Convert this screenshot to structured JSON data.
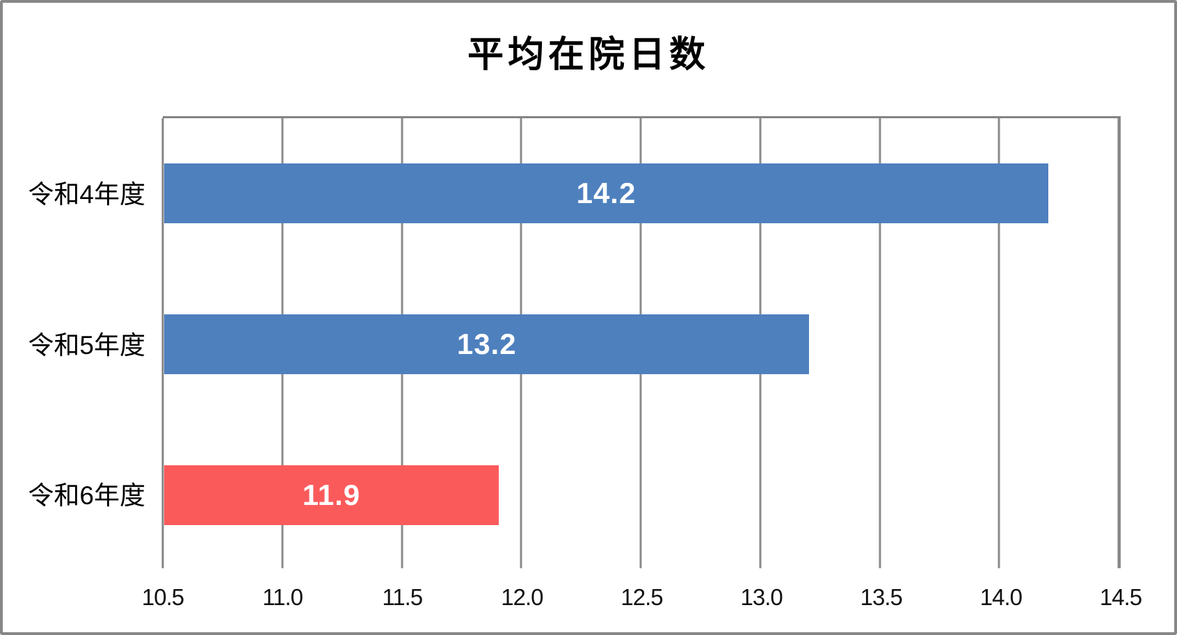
{
  "colors": {
    "bar_blue": "#4e80be",
    "bar_red": "#fb5a5b",
    "gridline": "#8b8b8b",
    "plot_border": "#848484",
    "frame_border": "#878787",
    "value_label_text": "#ffffff",
    "text": "#000000"
  },
  "chart_data": {
    "type": "bar",
    "orientation": "horizontal",
    "title": "平均在院日数",
    "categories": [
      "令和4年度",
      "令和5年度",
      "令和6年度"
    ],
    "values": [
      14.2,
      13.2,
      11.9
    ],
    "value_labels": [
      "14.2",
      "13.2",
      "11.9"
    ],
    "bar_colors": [
      "#4e80be",
      "#4e80be",
      "#fb5a5b"
    ],
    "xlim": [
      10.5,
      14.5
    ],
    "x_ticks": [
      "10.5",
      "11.0",
      "11.5",
      "12.0",
      "12.5",
      "13.0",
      "13.5",
      "14.0",
      "14.5"
    ],
    "grid": true,
    "legend": false,
    "xlabel": "",
    "ylabel": ""
  }
}
